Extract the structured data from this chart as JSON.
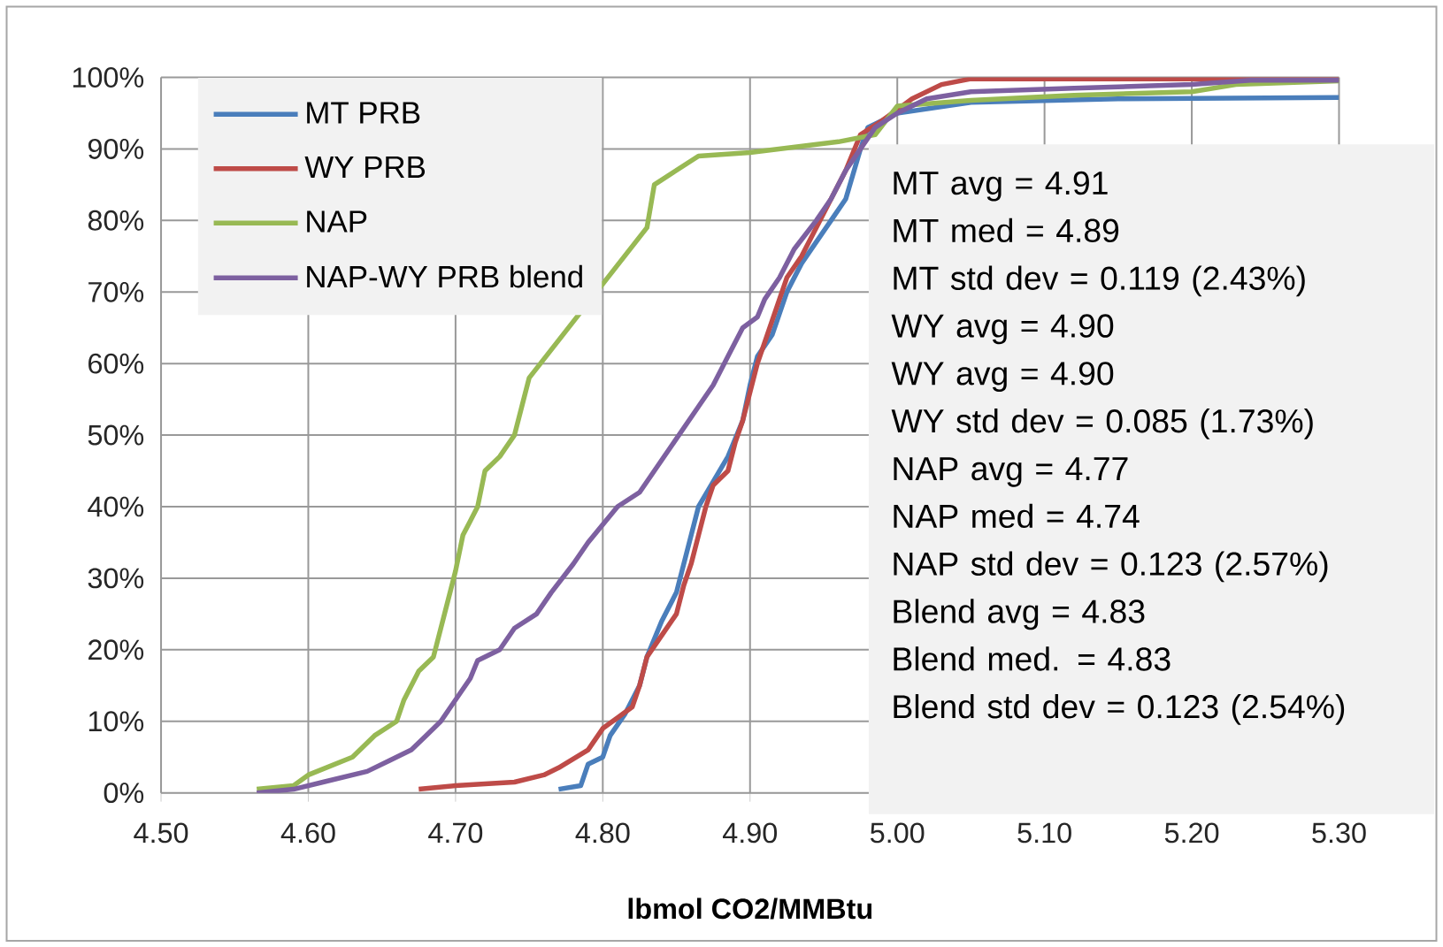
{
  "chart_data": {
    "type": "line",
    "xlabel": "**lbmol CO2/MMBtu**",
    "xlim": [
      4.5,
      5.3
    ],
    "xticks": [
      {
        "value": 4.5,
        "label": "4.50"
      },
      {
        "value": 4.6,
        "label": "4.60"
      },
      {
        "value": 4.7,
        "label": "4.70"
      },
      {
        "value": 4.8,
        "label": "4.80"
      },
      {
        "value": 4.9,
        "label": "4.90"
      },
      {
        "value": 5.0,
        "label": "5.00"
      },
      {
        "value": 5.1,
        "label": "5.10"
      },
      {
        "value": 5.2,
        "label": "5.20"
      },
      {
        "value": 5.3,
        "label": "5.30"
      }
    ],
    "ylim": [
      0,
      100
    ],
    "yticks": [
      {
        "value": 0,
        "label": "0%"
      },
      {
        "value": 10,
        "label": "10%"
      },
      {
        "value": 20,
        "label": "20%"
      },
      {
        "value": 30,
        "label": "30%"
      },
      {
        "value": 40,
        "label": "40%"
      },
      {
        "value": 50,
        "label": "50%"
      },
      {
        "value": 60,
        "label": "60%"
      },
      {
        "value": 70,
        "label": "70%"
      },
      {
        "value": 80,
        "label": "80%"
      },
      {
        "value": 90,
        "label": "90%"
      },
      {
        "value": 100,
        "label": "100%"
      }
    ],
    "grid": true,
    "legend": "top left",
    "line_style": "solid",
    "series": [
      {
        "name": "MT PRB",
        "color": "#4a7ebb",
        "x": [
          4.77,
          4.785,
          4.79,
          4.8,
          4.805,
          4.815,
          4.825,
          4.83,
          4.84,
          4.85,
          4.855,
          4.86,
          4.865,
          4.875,
          4.885,
          4.895,
          4.9,
          4.905,
          4.915,
          4.92,
          4.925,
          4.935,
          4.945,
          4.955,
          4.965,
          4.975,
          4.98,
          5.0,
          5.05,
          5.15,
          5.3
        ],
        "values": [
          0.5,
          1,
          4,
          5,
          8,
          11,
          15,
          19,
          24,
          28,
          32,
          36,
          40,
          43.5,
          47,
          52,
          57,
          61,
          64,
          67,
          70,
          74,
          77,
          80,
          83,
          90,
          93,
          95,
          96.5,
          97,
          97.2
        ]
      },
      {
        "name": "WY PRB",
        "color": "#be4b48",
        "x": [
          4.675,
          4.7,
          4.74,
          4.76,
          4.77,
          4.79,
          4.8,
          4.81,
          4.82,
          4.825,
          4.83,
          4.84,
          4.85,
          4.855,
          4.86,
          4.865,
          4.87,
          4.875,
          4.885,
          4.89,
          4.895,
          4.9,
          4.905,
          4.91,
          4.915,
          4.92,
          4.925,
          4.935,
          4.945,
          4.955,
          4.965,
          4.975,
          4.99,
          5.01,
          5.03,
          5.05,
          5.3
        ],
        "values": [
          0.5,
          1,
          1.5,
          2.5,
          3.5,
          6,
          9,
          10.5,
          12,
          15,
          19,
          22,
          25,
          29,
          32,
          36,
          40,
          43,
          45,
          49,
          52,
          56,
          60,
          63,
          66,
          69,
          72,
          75,
          79,
          83,
          87,
          92,
          94,
          97,
          99,
          99.8,
          99.8
        ]
      },
      {
        "name": "NAP",
        "color": "#98b954",
        "x": [
          4.565,
          4.59,
          4.6,
          4.63,
          4.645,
          4.66,
          4.665,
          4.675,
          4.685,
          4.69,
          4.695,
          4.7,
          4.705,
          4.71,
          4.715,
          4.72,
          4.73,
          4.74,
          4.745,
          4.75,
          4.83,
          4.835,
          4.85,
          4.865,
          4.9,
          4.96,
          4.985,
          5.0,
          5.05,
          5.12,
          5.2,
          5.23,
          5.3
        ],
        "values": [
          0.5,
          1,
          2.5,
          5,
          8,
          10,
          13,
          17,
          19,
          23,
          27,
          31,
          36,
          38,
          40,
          45,
          47,
          50,
          54,
          58,
          79,
          85,
          87,
          89,
          89.5,
          91,
          92,
          96,
          96.8,
          97.5,
          98,
          99,
          99.5
        ]
      },
      {
        "name": "NAP-WY PRB blend",
        "color": "#7d60a0",
        "x": [
          4.565,
          4.59,
          4.61,
          4.64,
          4.655,
          4.67,
          4.68,
          4.69,
          4.7,
          4.71,
          4.715,
          4.73,
          4.74,
          4.755,
          4.765,
          4.78,
          4.79,
          4.8,
          4.81,
          4.825,
          4.835,
          4.845,
          4.855,
          4.865,
          4.875,
          4.885,
          4.89,
          4.895,
          4.905,
          4.91,
          4.92,
          4.93,
          4.945,
          4.955,
          4.965,
          4.975,
          4.985,
          5.0,
          5.02,
          5.05,
          5.12,
          5.2,
          5.24,
          5.3
        ],
        "values": [
          0,
          0.5,
          1.5,
          3,
          4.5,
          6,
          8,
          10,
          13,
          16,
          18.5,
          20,
          23,
          25,
          28,
          32,
          35,
          37.5,
          40,
          42,
          45,
          48,
          51,
          54,
          57,
          61,
          63,
          65,
          66.5,
          69,
          72,
          76,
          80,
          83,
          87,
          90,
          93,
          95,
          97,
          98,
          98.5,
          99,
          99.6,
          99.6
        ]
      }
    ],
    "annotations": [
      "MT avg = 4.91",
      "MT med = 4.89",
      "MT std dev = 0.119 (2.43%)",
      "WY avg = 4.90",
      "WY avg = 4.90",
      "WY std dev = 0.085 (1.73%)",
      "NAP avg = 4.77",
      "NAP med = 4.74",
      "NAP std dev = 0.123 (2.57%)",
      "Blend avg = 4.83",
      "Blend med. = 4.83",
      "Blend std dev = 0.123 (2.54%)"
    ]
  }
}
